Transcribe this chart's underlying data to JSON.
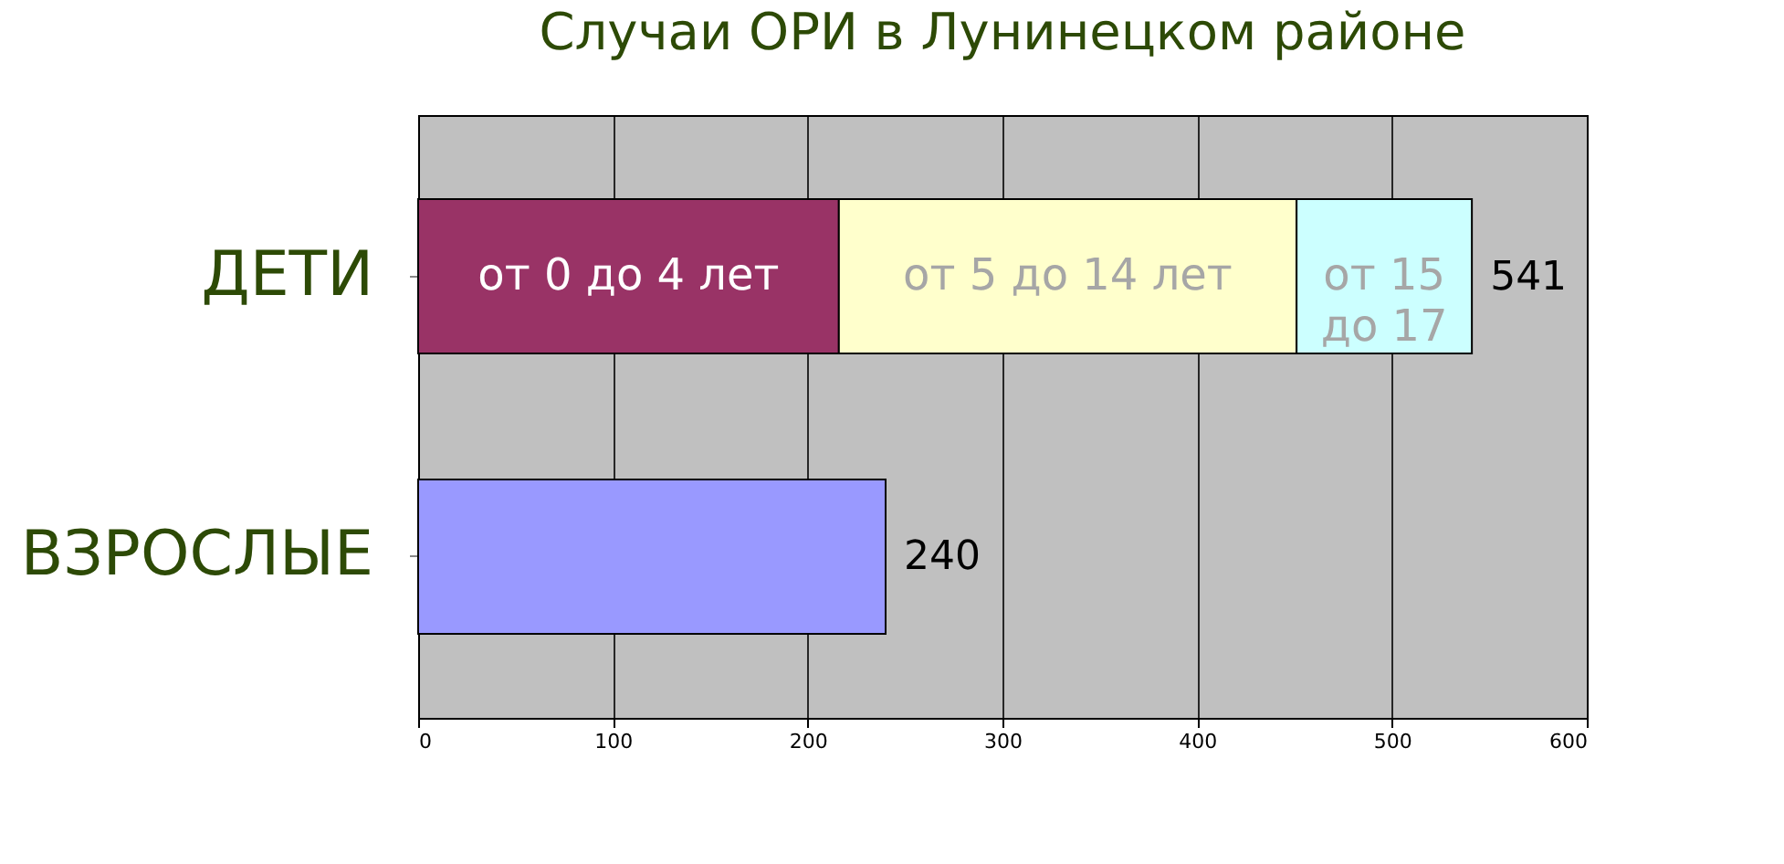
{
  "chart_data": {
    "type": "bar",
    "orientation": "horizontal",
    "stacked": true,
    "title": "Случаи ОРИ в Лунинецком районе",
    "categories": [
      "ДЕТИ",
      "ВЗРОСЛЫЕ"
    ],
    "series": [
      {
        "name": "от 0 до 4 лет",
        "color": "#993366",
        "values": [
          216,
          null
        ]
      },
      {
        "name": "от 5 до 14 лет",
        "color": "#ffffcc",
        "values": [
          235,
          null
        ]
      },
      {
        "name": "от 15 до 17",
        "color": "#ccffff",
        "values": [
          90,
          null
        ]
      },
      {
        "color": "#9999ff",
        "values": [
          null,
          240
        ]
      }
    ],
    "totals": [
      "541",
      "240"
    ],
    "xlim": [
      0,
      600
    ],
    "xticks": [
      0,
      100,
      200,
      300,
      400,
      500,
      600
    ],
    "grid": "x",
    "legend": false
  }
}
